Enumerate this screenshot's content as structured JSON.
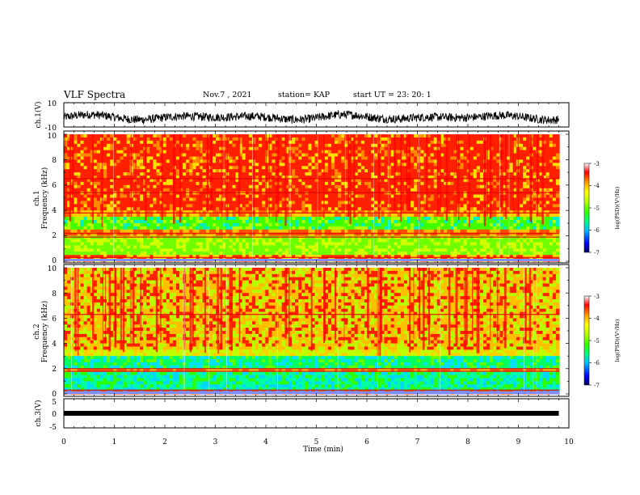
{
  "header": {
    "title": "VLF Spectra",
    "date": "Nov.7 , 2021",
    "station": "station= KAP",
    "start": "start UT = 23: 20: 1"
  },
  "colors": {
    "waveform": "#000000",
    "colormap": [
      "#000060",
      "#0000ff",
      "#00a0ff",
      "#00ffff",
      "#00ff00",
      "#a0ff00",
      "#ffff00",
      "#ffa000",
      "#ff0000",
      "#ffffff"
    ]
  },
  "chart_data": [
    {
      "type": "line",
      "ylabel": "ch.1(V)",
      "yticks": [
        "10",
        "-10"
      ],
      "ylim": [
        -10,
        10
      ],
      "xlim": [
        0,
        10
      ],
      "description_series": "noisy waveform around -2 V"
    },
    {
      "type": "heatmap",
      "ylabel_top": "ch.1",
      "ylabel": "Frequency (kHz)",
      "yticks": [
        "0",
        "2",
        "4",
        "6",
        "8",
        "10"
      ],
      "ylim": [
        0,
        10
      ],
      "xlim": [
        0,
        10
      ],
      "colorbar": {
        "label": "log(PSD)(V²/Hz)",
        "ticks": [
          "-3",
          "-4",
          "-5",
          "-6",
          "-7"
        ],
        "range": [
          -7,
          -3
        ]
      }
    },
    {
      "type": "heatmap",
      "ylabel_top": "ch.2",
      "ylabel": "Frequency (kHz)",
      "yticks": [
        "0",
        "2",
        "4",
        "6",
        "8",
        "10"
      ],
      "ylim": [
        0,
        10
      ],
      "xlim": [
        0,
        10
      ],
      "colorbar": {
        "label": "log(PSD)(V²/Hz)",
        "ticks": [
          "-3",
          "-4",
          "-5",
          "-6",
          "-7"
        ],
        "range": [
          -7,
          -3
        ]
      }
    },
    {
      "type": "line",
      "ylabel": "ch.3(V)",
      "yticks": [
        "5",
        "0",
        "-5"
      ],
      "ylim": [
        -5,
        5
      ],
      "xlim": [
        0,
        10
      ],
      "series": [
        {
          "x": [
            0,
            9.8
          ],
          "y": [
            0,
            0
          ]
        }
      ]
    }
  ],
  "xaxis": {
    "label": "Time (min)",
    "ticks": [
      "0",
      "1",
      "2",
      "3",
      "4",
      "5",
      "6",
      "7",
      "8",
      "9",
      "10"
    ]
  }
}
